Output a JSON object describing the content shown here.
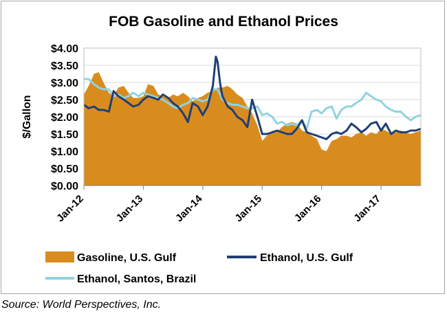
{
  "chart_data": {
    "type": "area",
    "title": "FOB Gasoline and Ethanol Prices",
    "ylabel": "$/Gallon",
    "xlabel": "",
    "ylim": [
      0,
      4
    ],
    "xlim": [
      2012.0,
      2017.67
    ],
    "grid": true,
    "legend_position": "bottom",
    "y_ticks": [
      {
        "value": 0.0,
        "label": "$0.00"
      },
      {
        "value": 0.5,
        "label": "$0.50"
      },
      {
        "value": 1.0,
        "label": "$1.00"
      },
      {
        "value": 1.5,
        "label": "$1.50"
      },
      {
        "value": 2.0,
        "label": "$2.00"
      },
      {
        "value": 2.5,
        "label": "$2.50"
      },
      {
        "value": 3.0,
        "label": "$3.00"
      },
      {
        "value": 3.5,
        "label": "$3.50"
      },
      {
        "value": 4.0,
        "label": "$4.00"
      }
    ],
    "x_ticks": [
      {
        "value": 2012,
        "label": "Jan-12"
      },
      {
        "value": 2013,
        "label": "Jan-13"
      },
      {
        "value": 2014,
        "label": "Jan-14"
      },
      {
        "value": 2015,
        "label": "Jan-15"
      },
      {
        "value": 2016,
        "label": "Jan-16"
      },
      {
        "value": 2017,
        "label": "Jan-17"
      }
    ],
    "series": [
      {
        "name": "Gasoline, U.S. Gulf",
        "style": "area",
        "color": "#d98c1e",
        "x": [
          2012.0,
          2012.08,
          2012.17,
          2012.25,
          2012.33,
          2012.42,
          2012.5,
          2012.58,
          2012.67,
          2012.75,
          2012.83,
          2012.92,
          2013.0,
          2013.08,
          2013.17,
          2013.25,
          2013.33,
          2013.42,
          2013.5,
          2013.58,
          2013.67,
          2013.75,
          2013.83,
          2013.92,
          2014.0,
          2014.08,
          2014.17,
          2014.25,
          2014.33,
          2014.42,
          2014.5,
          2014.58,
          2014.67,
          2014.75,
          2014.83,
          2014.92,
          2015.0,
          2015.08,
          2015.17,
          2015.25,
          2015.33,
          2015.42,
          2015.5,
          2015.58,
          2015.67,
          2015.75,
          2015.83,
          2015.92,
          2016.0,
          2016.08,
          2016.17,
          2016.25,
          2016.33,
          2016.42,
          2016.5,
          2016.58,
          2016.67,
          2016.75,
          2016.83,
          2016.92,
          2017.0,
          2017.08,
          2017.17,
          2017.25,
          2017.33,
          2017.42,
          2017.5,
          2017.58,
          2017.67
        ],
        "values": [
          2.65,
          2.9,
          3.25,
          3.3,
          3.0,
          2.7,
          2.6,
          2.85,
          2.9,
          2.7,
          2.55,
          2.55,
          2.6,
          2.95,
          2.9,
          2.65,
          2.6,
          2.55,
          2.65,
          2.6,
          2.7,
          2.6,
          2.45,
          2.55,
          2.6,
          2.7,
          2.75,
          2.85,
          2.85,
          2.9,
          2.8,
          2.65,
          2.55,
          2.3,
          2.1,
          1.75,
          1.3,
          1.45,
          1.6,
          1.55,
          1.7,
          1.8,
          1.85,
          1.8,
          1.6,
          1.55,
          1.45,
          1.35,
          1.05,
          1.0,
          1.3,
          1.35,
          1.45,
          1.45,
          1.4,
          1.5,
          1.55,
          1.45,
          1.55,
          1.5,
          1.65,
          1.6,
          1.5,
          1.55,
          1.6,
          1.55,
          1.5,
          1.55,
          1.6
        ]
      },
      {
        "name": "Ethanol, U.S. Gulf",
        "style": "line",
        "color": "#1f3f73",
        "x": [
          2012.0,
          2012.08,
          2012.17,
          2012.25,
          2012.33,
          2012.42,
          2012.5,
          2012.58,
          2012.67,
          2012.75,
          2012.83,
          2012.92,
          2013.0,
          2013.08,
          2013.17,
          2013.25,
          2013.33,
          2013.42,
          2013.5,
          2013.58,
          2013.67,
          2013.75,
          2013.83,
          2013.92,
          2014.0,
          2014.08,
          2014.17,
          2014.22,
          2014.25,
          2014.29,
          2014.33,
          2014.42,
          2014.5,
          2014.58,
          2014.67,
          2014.75,
          2014.83,
          2014.92,
          2015.0,
          2015.08,
          2015.17,
          2015.25,
          2015.33,
          2015.42,
          2015.5,
          2015.58,
          2015.67,
          2015.75,
          2015.83,
          2015.92,
          2016.0,
          2016.08,
          2016.17,
          2016.25,
          2016.33,
          2016.42,
          2016.5,
          2016.58,
          2016.67,
          2016.75,
          2016.83,
          2016.92,
          2017.0,
          2017.08,
          2017.17,
          2017.25,
          2017.33,
          2017.42,
          2017.5,
          2017.58,
          2017.67
        ],
        "values": [
          2.35,
          2.25,
          2.3,
          2.2,
          2.2,
          2.15,
          2.75,
          2.6,
          2.5,
          2.4,
          2.3,
          2.35,
          2.5,
          2.6,
          2.55,
          2.5,
          2.65,
          2.55,
          2.4,
          2.3,
          2.1,
          1.85,
          2.4,
          2.3,
          2.05,
          2.3,
          2.9,
          3.75,
          3.6,
          3.0,
          2.6,
          2.3,
          2.2,
          2.0,
          1.9,
          1.7,
          2.5,
          2.0,
          1.5,
          1.5,
          1.55,
          1.6,
          1.55,
          1.5,
          1.5,
          1.65,
          1.9,
          1.55,
          1.5,
          1.45,
          1.4,
          1.35,
          1.5,
          1.55,
          1.5,
          1.6,
          1.8,
          1.7,
          1.55,
          1.65,
          1.8,
          1.85,
          1.6,
          1.8,
          1.5,
          1.6,
          1.55,
          1.55,
          1.6,
          1.6,
          1.65
        ]
      },
      {
        "name": "Ethanol, Santos, Brazil",
        "style": "line",
        "color": "#8fd3e3",
        "x": [
          2012.0,
          2012.08,
          2012.17,
          2012.25,
          2012.33,
          2012.42,
          2012.5,
          2012.58,
          2012.67,
          2012.75,
          2012.83,
          2012.92,
          2013.0,
          2013.08,
          2013.17,
          2013.25,
          2013.33,
          2013.42,
          2013.5,
          2013.58,
          2013.67,
          2013.75,
          2013.83,
          2013.92,
          2014.0,
          2014.08,
          2014.17,
          2014.25,
          2014.33,
          2014.42,
          2014.5,
          2014.58,
          2014.67,
          2014.75,
          2014.83,
          2014.92,
          2015.0,
          2015.08,
          2015.17,
          2015.25,
          2015.33,
          2015.42,
          2015.5,
          2015.58,
          2015.67,
          2015.75,
          2015.83,
          2015.92,
          2016.0,
          2016.08,
          2016.17,
          2016.25,
          2016.33,
          2016.42,
          2016.5,
          2016.58,
          2016.67,
          2016.75,
          2016.83,
          2016.92,
          2017.0,
          2017.08,
          2017.17,
          2017.25,
          2017.33,
          2017.42,
          2017.5,
          2017.58,
          2017.67
        ],
        "values": [
          3.1,
          3.1,
          2.95,
          2.85,
          2.8,
          2.8,
          2.6,
          2.65,
          2.55,
          2.6,
          2.7,
          2.6,
          2.7,
          2.65,
          2.6,
          2.55,
          2.5,
          2.4,
          2.3,
          2.25,
          2.35,
          2.4,
          2.55,
          2.5,
          2.45,
          2.5,
          2.8,
          2.8,
          2.5,
          2.4,
          2.35,
          2.35,
          2.3,
          2.25,
          2.25,
          2.3,
          2.05,
          2.1,
          2.0,
          1.8,
          1.85,
          1.75,
          1.8,
          1.75,
          1.9,
          1.65,
          2.15,
          2.2,
          2.1,
          2.25,
          2.3,
          1.95,
          2.2,
          2.3,
          2.3,
          2.4,
          2.5,
          2.7,
          2.6,
          2.5,
          2.45,
          2.3,
          2.2,
          2.15,
          2.15,
          2.0,
          1.9,
          2.0,
          2.05
        ]
      }
    ]
  },
  "source_text": "Source: World Perspectives, Inc.",
  "colors": {
    "gasoline": "#d98c1e",
    "ethanol_us": "#1f3f73",
    "ethanol_brazil": "#8fd3e3",
    "grid": "#d9d9d9"
  }
}
